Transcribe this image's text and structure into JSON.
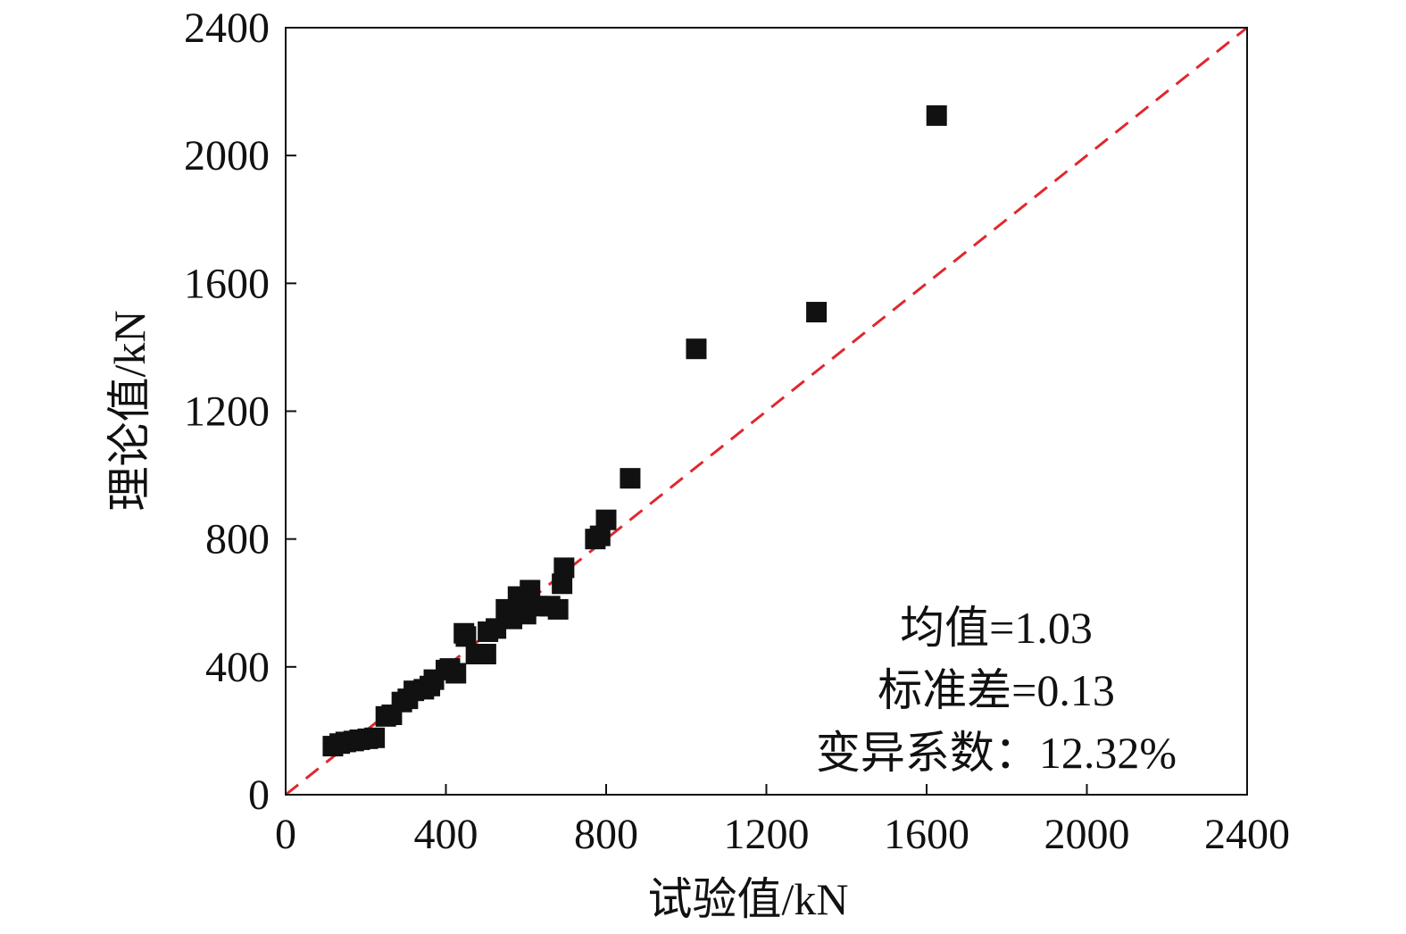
{
  "chart_data": {
    "type": "scatter",
    "title": "",
    "xlabel": "试验值/kN",
    "ylabel": "理论值/kN",
    "xlim": [
      0,
      2400
    ],
    "ylim": [
      0,
      2400
    ],
    "xticks": [
      "0",
      "400",
      "800",
      "1200",
      "1600",
      "2000",
      "2400"
    ],
    "yticks": [
      "0",
      "400",
      "800",
      "1200",
      "1600",
      "2000",
      "2400"
    ],
    "grid": false,
    "legend": "none",
    "marker": "square",
    "marker_color": "#111111",
    "reference_line": {
      "from": [
        0,
        0
      ],
      "to": [
        2400,
        2400
      ],
      "style": "dashed",
      "color": "#e0282e"
    },
    "points": [
      [
        118,
        152
      ],
      [
        135,
        160
      ],
      [
        150,
        165
      ],
      [
        170,
        168
      ],
      [
        185,
        172
      ],
      [
        205,
        175
      ],
      [
        222,
        178
      ],
      [
        250,
        245
      ],
      [
        265,
        250
      ],
      [
        290,
        290
      ],
      [
        305,
        300
      ],
      [
        320,
        325
      ],
      [
        345,
        330
      ],
      [
        360,
        340
      ],
      [
        370,
        360
      ],
      [
        400,
        390
      ],
      [
        410,
        395
      ],
      [
        425,
        380
      ],
      [
        445,
        505
      ],
      [
        450,
        495
      ],
      [
        475,
        440
      ],
      [
        500,
        440
      ],
      [
        505,
        510
      ],
      [
        525,
        520
      ],
      [
        550,
        580
      ],
      [
        565,
        550
      ],
      [
        580,
        620
      ],
      [
        600,
        565
      ],
      [
        610,
        640
      ],
      [
        630,
        590
      ],
      [
        660,
        590
      ],
      [
        680,
        580
      ],
      [
        690,
        660
      ],
      [
        695,
        710
      ],
      [
        773,
        800
      ],
      [
        785,
        810
      ],
      [
        800,
        860
      ],
      [
        860,
        990
      ],
      [
        1025,
        1395
      ],
      [
        1325,
        1510
      ],
      [
        1625,
        2125
      ]
    ],
    "annotations": [
      "均值=1.03",
      "标准差=0.13",
      "变异系数：12.32%"
    ]
  }
}
